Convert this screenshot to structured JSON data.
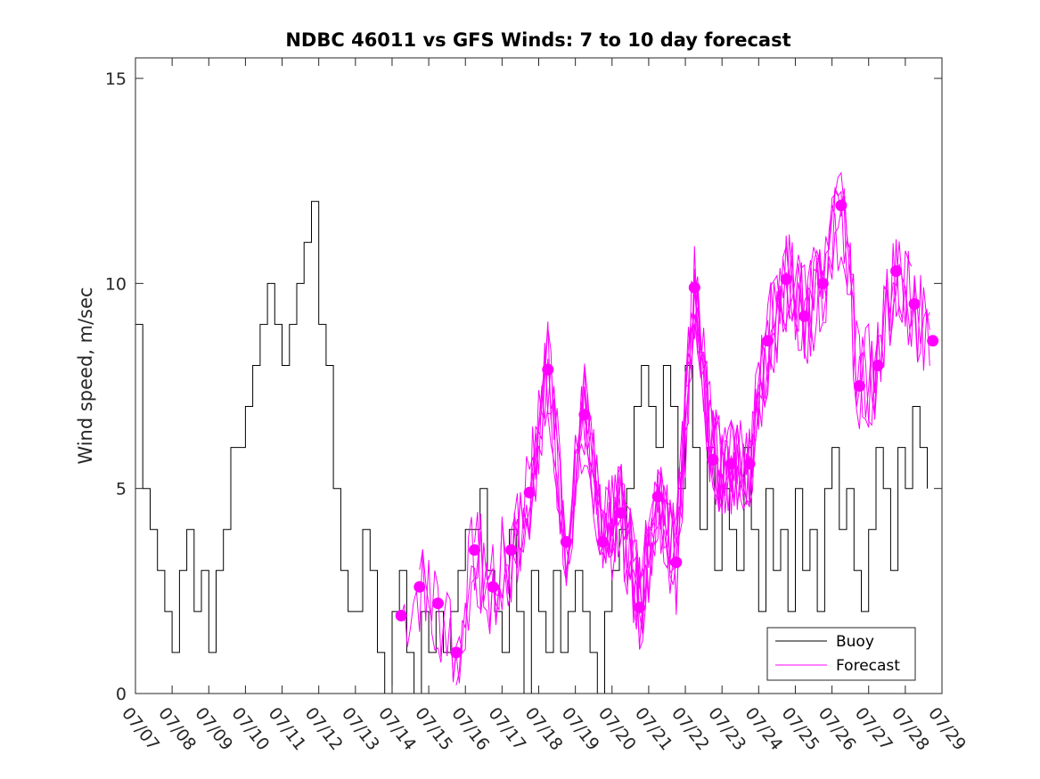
{
  "chart_data": {
    "type": "line",
    "title": "NDBC 46011 vs GFS Winds: 7 to 10 day forecast",
    "xlabel": "",
    "ylabel": "Wind speed, m/sec",
    "xlim": [
      "07/07",
      "07/29"
    ],
    "ylim": [
      0,
      15.5
    ],
    "yticks": [
      0,
      5,
      10,
      15
    ],
    "ytick_labels": [
      "0",
      "5",
      "10",
      "15"
    ],
    "xtick_labels": [
      "07/07",
      "07/08",
      "07/09",
      "07/10",
      "07/11",
      "07/12",
      "07/13",
      "07/14",
      "07/15",
      "07/16",
      "07/17",
      "07/18",
      "07/19",
      "07/20",
      "07/21",
      "07/22",
      "07/23",
      "07/24",
      "07/25",
      "07/26",
      "07/27",
      "07/28",
      "07/29"
    ],
    "grid": false,
    "legend": {
      "position": "bottom-right",
      "entries": [
        {
          "label": "Buoy",
          "color": "#000000"
        },
        {
          "label": "Forecast",
          "color": "#ff00ff"
        }
      ]
    },
    "series": [
      {
        "name": "Buoy",
        "color": "#000000",
        "x_days": [
          0.0,
          0.2,
          0.4,
          0.6,
          0.8,
          1.0,
          1.2,
          1.4,
          1.6,
          1.8,
          2.0,
          2.2,
          2.4,
          2.6,
          2.8,
          3.0,
          3.2,
          3.4,
          3.6,
          3.8,
          4.0,
          4.2,
          4.4,
          4.6,
          4.8,
          5.0,
          5.2,
          5.4,
          5.6,
          5.8,
          6.0,
          6.2,
          6.4,
          6.6,
          6.8,
          7.0,
          7.2,
          7.4,
          7.6,
          7.8,
          8.0,
          8.2,
          8.4,
          8.6,
          8.8,
          9.0,
          9.2,
          9.4,
          9.6,
          9.8,
          10.0,
          10.2,
          10.4,
          10.6,
          10.8,
          11.0,
          11.2,
          11.4,
          11.6,
          11.8,
          12.0,
          12.2,
          12.4,
          12.6,
          12.8,
          13.0,
          13.2,
          13.4,
          13.6,
          13.8,
          14.0,
          14.2,
          14.4,
          14.6,
          14.8,
          15.0,
          15.2,
          15.4,
          15.6,
          15.8,
          16.0,
          16.2,
          16.4,
          16.6,
          16.8,
          17.0,
          17.2,
          17.4,
          17.6,
          17.8,
          18.0,
          18.2,
          18.4,
          18.6,
          18.8,
          19.0,
          19.2,
          19.4,
          19.6,
          19.8,
          20.0,
          20.2,
          20.4,
          20.6,
          20.8,
          21.0,
          21.2,
          21.4,
          21.6
        ],
        "values": [
          9,
          5,
          4,
          3,
          2,
          1,
          3,
          4,
          2,
          3,
          1,
          3,
          4,
          6,
          6,
          7,
          8,
          9,
          10,
          9,
          8,
          9,
          10,
          11,
          12,
          9,
          8,
          5,
          3,
          2,
          2,
          4,
          3,
          1,
          0,
          2,
          3,
          1,
          0,
          2,
          1,
          2,
          1,
          2,
          3,
          4,
          4,
          5,
          3,
          2,
          1,
          4,
          2,
          0,
          3,
          2,
          1,
          3,
          1,
          2,
          3,
          2,
          1,
          0,
          2,
          3,
          4,
          5,
          7,
          8,
          7,
          6,
          8,
          7,
          5,
          8,
          6,
          4,
          6,
          3,
          5,
          4,
          3,
          6,
          4,
          2,
          5,
          3,
          4,
          2,
          5,
          3,
          4,
          2,
          5,
          6,
          4,
          5,
          3,
          2,
          4,
          6,
          5,
          3,
          6,
          5,
          7,
          6,
          5
        ]
      },
      {
        "name": "Forecast",
        "color": "#ff00ff",
        "markers_x_days": [
          7.25,
          7.75,
          8.25,
          8.75,
          9.25,
          9.75,
          10.25,
          10.75,
          11.25,
          11.75,
          12.25,
          12.75,
          13.25,
          13.75,
          14.25,
          14.75,
          15.25,
          15.75,
          16.25,
          16.75,
          17.25,
          17.75,
          18.25,
          18.75,
          19.25,
          19.75,
          20.25,
          20.75,
          21.25,
          21.75
        ],
        "marker_values": [
          1.9,
          2.6,
          2.2,
          1.0,
          3.5,
          2.6,
          3.5,
          4.9,
          7.9,
          3.7,
          6.8,
          3.7,
          4.4,
          2.1,
          4.8,
          3.2,
          9.9,
          5.7,
          5.6,
          5.6,
          8.6,
          10.1,
          9.2,
          10.0,
          11.9,
          7.5,
          8.0,
          10.3,
          9.5,
          8.6
        ]
      }
    ]
  }
}
